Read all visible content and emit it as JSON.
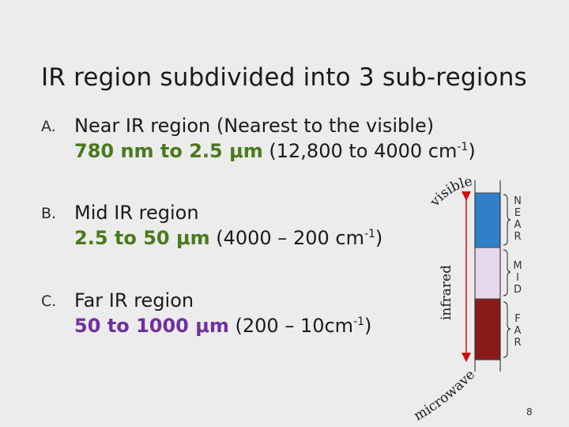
{
  "title": "IR region subdivided into 3 sub-regions",
  "items": [
    {
      "marker": "A.",
      "line1": "Near IR region (Nearest to the visible)",
      "range": "780 nm to 2.5 μm",
      "wavenumber_open": " (12,800 to 4000 cm",
      "exp": "-1",
      "close": ")"
    },
    {
      "marker": "B.",
      "line1": "Mid IR region",
      "range": "2.5 to 50 μm",
      "wavenumber_open": " (4000 – 200 cm",
      "exp": "-1",
      "close": ")"
    },
    {
      "marker": "C.",
      "line1": "Far IR region",
      "range": "50 to 1000 μm",
      "wavenumber_open": " (200 – 10cm",
      "exp": "-1",
      "close": ")"
    }
  ],
  "diagram": {
    "top_label": "visible",
    "side_label": "infrared",
    "bottom_label": "microwave",
    "near_letters": [
      "N",
      "E",
      "A",
      "R"
    ],
    "mid_letters": [
      "M",
      "I",
      "D"
    ],
    "far_letters": [
      "F",
      "A",
      "R"
    ],
    "colors": {
      "near": "#2f80c8",
      "mid": "#e6d8ea",
      "far": "#8b1a1a",
      "arrow": "#d01010"
    }
  },
  "page_number": "8"
}
